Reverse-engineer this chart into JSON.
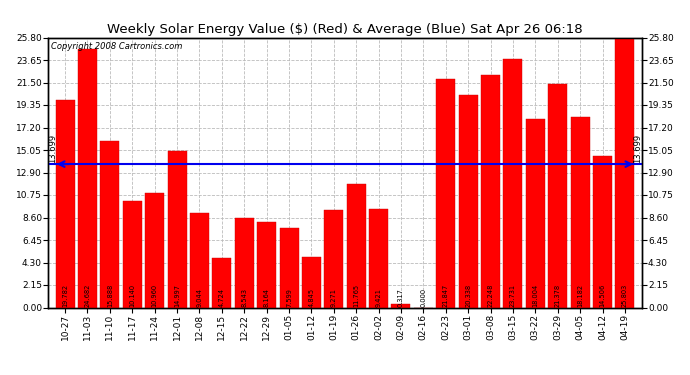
{
  "title": "Weekly Solar Energy Value ($) (Red) & Average (Blue) Sat Apr 26 06:18",
  "copyright": "Copyright 2008 Cartronics.com",
  "categories": [
    "10-27",
    "11-03",
    "11-10",
    "11-17",
    "11-24",
    "12-01",
    "12-08",
    "12-15",
    "12-22",
    "12-29",
    "01-05",
    "01-12",
    "01-19",
    "01-26",
    "02-02",
    "02-09",
    "02-16",
    "02-23",
    "03-01",
    "03-08",
    "03-15",
    "03-22",
    "03-29",
    "04-05",
    "04-12",
    "04-19"
  ],
  "values": [
    19.782,
    24.682,
    15.888,
    10.14,
    10.96,
    14.997,
    9.044,
    4.724,
    8.543,
    8.164,
    7.599,
    4.845,
    9.271,
    11.765,
    9.421,
    0.317,
    0.0,
    21.847,
    20.338,
    22.248,
    23.731,
    18.004,
    21.378,
    18.182,
    14.506,
    25.803
  ],
  "average": 13.699,
  "bar_color": "#ff0000",
  "average_color": "#0000ee",
  "background_color": "#ffffff",
  "plot_background": "#ffffff",
  "grid_color": "#bbbbbb",
  "ylim": [
    0.0,
    25.8
  ],
  "yticks": [
    0.0,
    2.15,
    4.3,
    6.45,
    8.6,
    10.75,
    12.9,
    15.05,
    17.2,
    19.35,
    21.5,
    23.65,
    25.8
  ],
  "bar_width": 0.85,
  "title_fontsize": 9.5,
  "tick_fontsize": 6.5,
  "value_fontsize": 4.8,
  "copyright_fontsize": 6,
  "average_label": "13.699",
  "arrow_color": "#0000ee"
}
